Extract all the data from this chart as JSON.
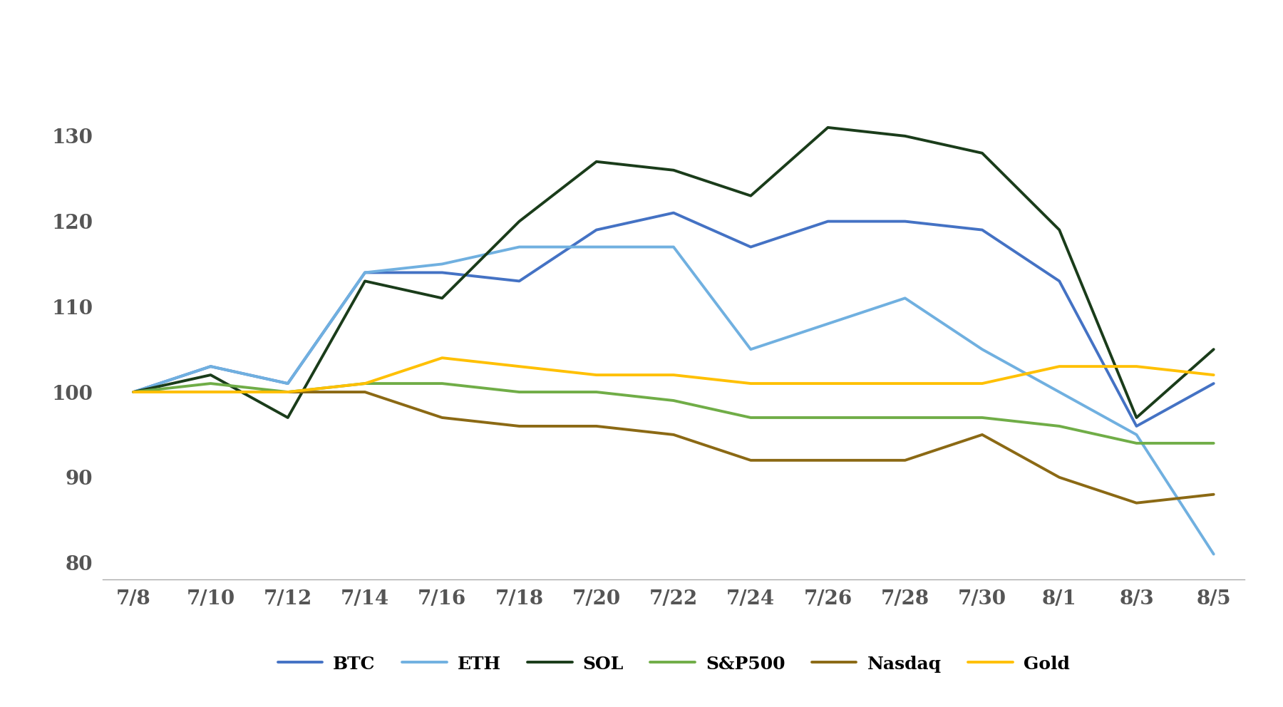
{
  "x_labels": [
    "7/8",
    "7/10",
    "7/12",
    "7/14",
    "7/16",
    "7/18",
    "7/20",
    "7/22",
    "7/24",
    "7/26",
    "7/28",
    "7/30",
    "8/1",
    "8/3",
    "8/5"
  ],
  "series": {
    "BTC": {
      "color": "#4472C4",
      "linewidth": 2.8,
      "values": [
        100,
        103,
        101,
        114,
        114,
        113,
        119,
        121,
        117,
        120,
        120,
        119,
        113,
        96,
        101
      ]
    },
    "ETH": {
      "color": "#70B0E0",
      "linewidth": 2.8,
      "values": [
        100,
        103,
        101,
        114,
        115,
        117,
        117,
        117,
        105,
        108,
        111,
        105,
        100,
        95,
        81
      ]
    },
    "SOL": {
      "color": "#1A3C1A",
      "linewidth": 2.8,
      "values": [
        100,
        102,
        97,
        113,
        111,
        120,
        127,
        126,
        123,
        131,
        130,
        128,
        119,
        97,
        105
      ]
    },
    "S&P500": {
      "color": "#70AD47",
      "linewidth": 2.8,
      "values": [
        100,
        101,
        100,
        101,
        101,
        100,
        100,
        99,
        97,
        97,
        97,
        97,
        96,
        94,
        94
      ]
    },
    "Nasdaq": {
      "color": "#8B6914",
      "linewidth": 2.8,
      "values": [
        100,
        100,
        100,
        100,
        97,
        96,
        96,
        95,
        92,
        92,
        92,
        95,
        90,
        87,
        88
      ]
    },
    "Gold": {
      "color": "#FFC000",
      "linewidth": 2.8,
      "values": [
        100,
        100,
        100,
        101,
        104,
        103,
        102,
        102,
        101,
        101,
        101,
        101,
        103,
        103,
        102
      ]
    }
  },
  "ylim": [
    78,
    136
  ],
  "yticks": [
    80,
    90,
    100,
    110,
    120,
    130
  ],
  "background_color": "#FFFFFF",
  "legend_order": [
    "BTC",
    "ETH",
    "SOL",
    "S&P500",
    "Nasdaq",
    "Gold"
  ],
  "tick_label_color": "#555555",
  "tick_label_fontsize": 20,
  "legend_fontsize": 18
}
